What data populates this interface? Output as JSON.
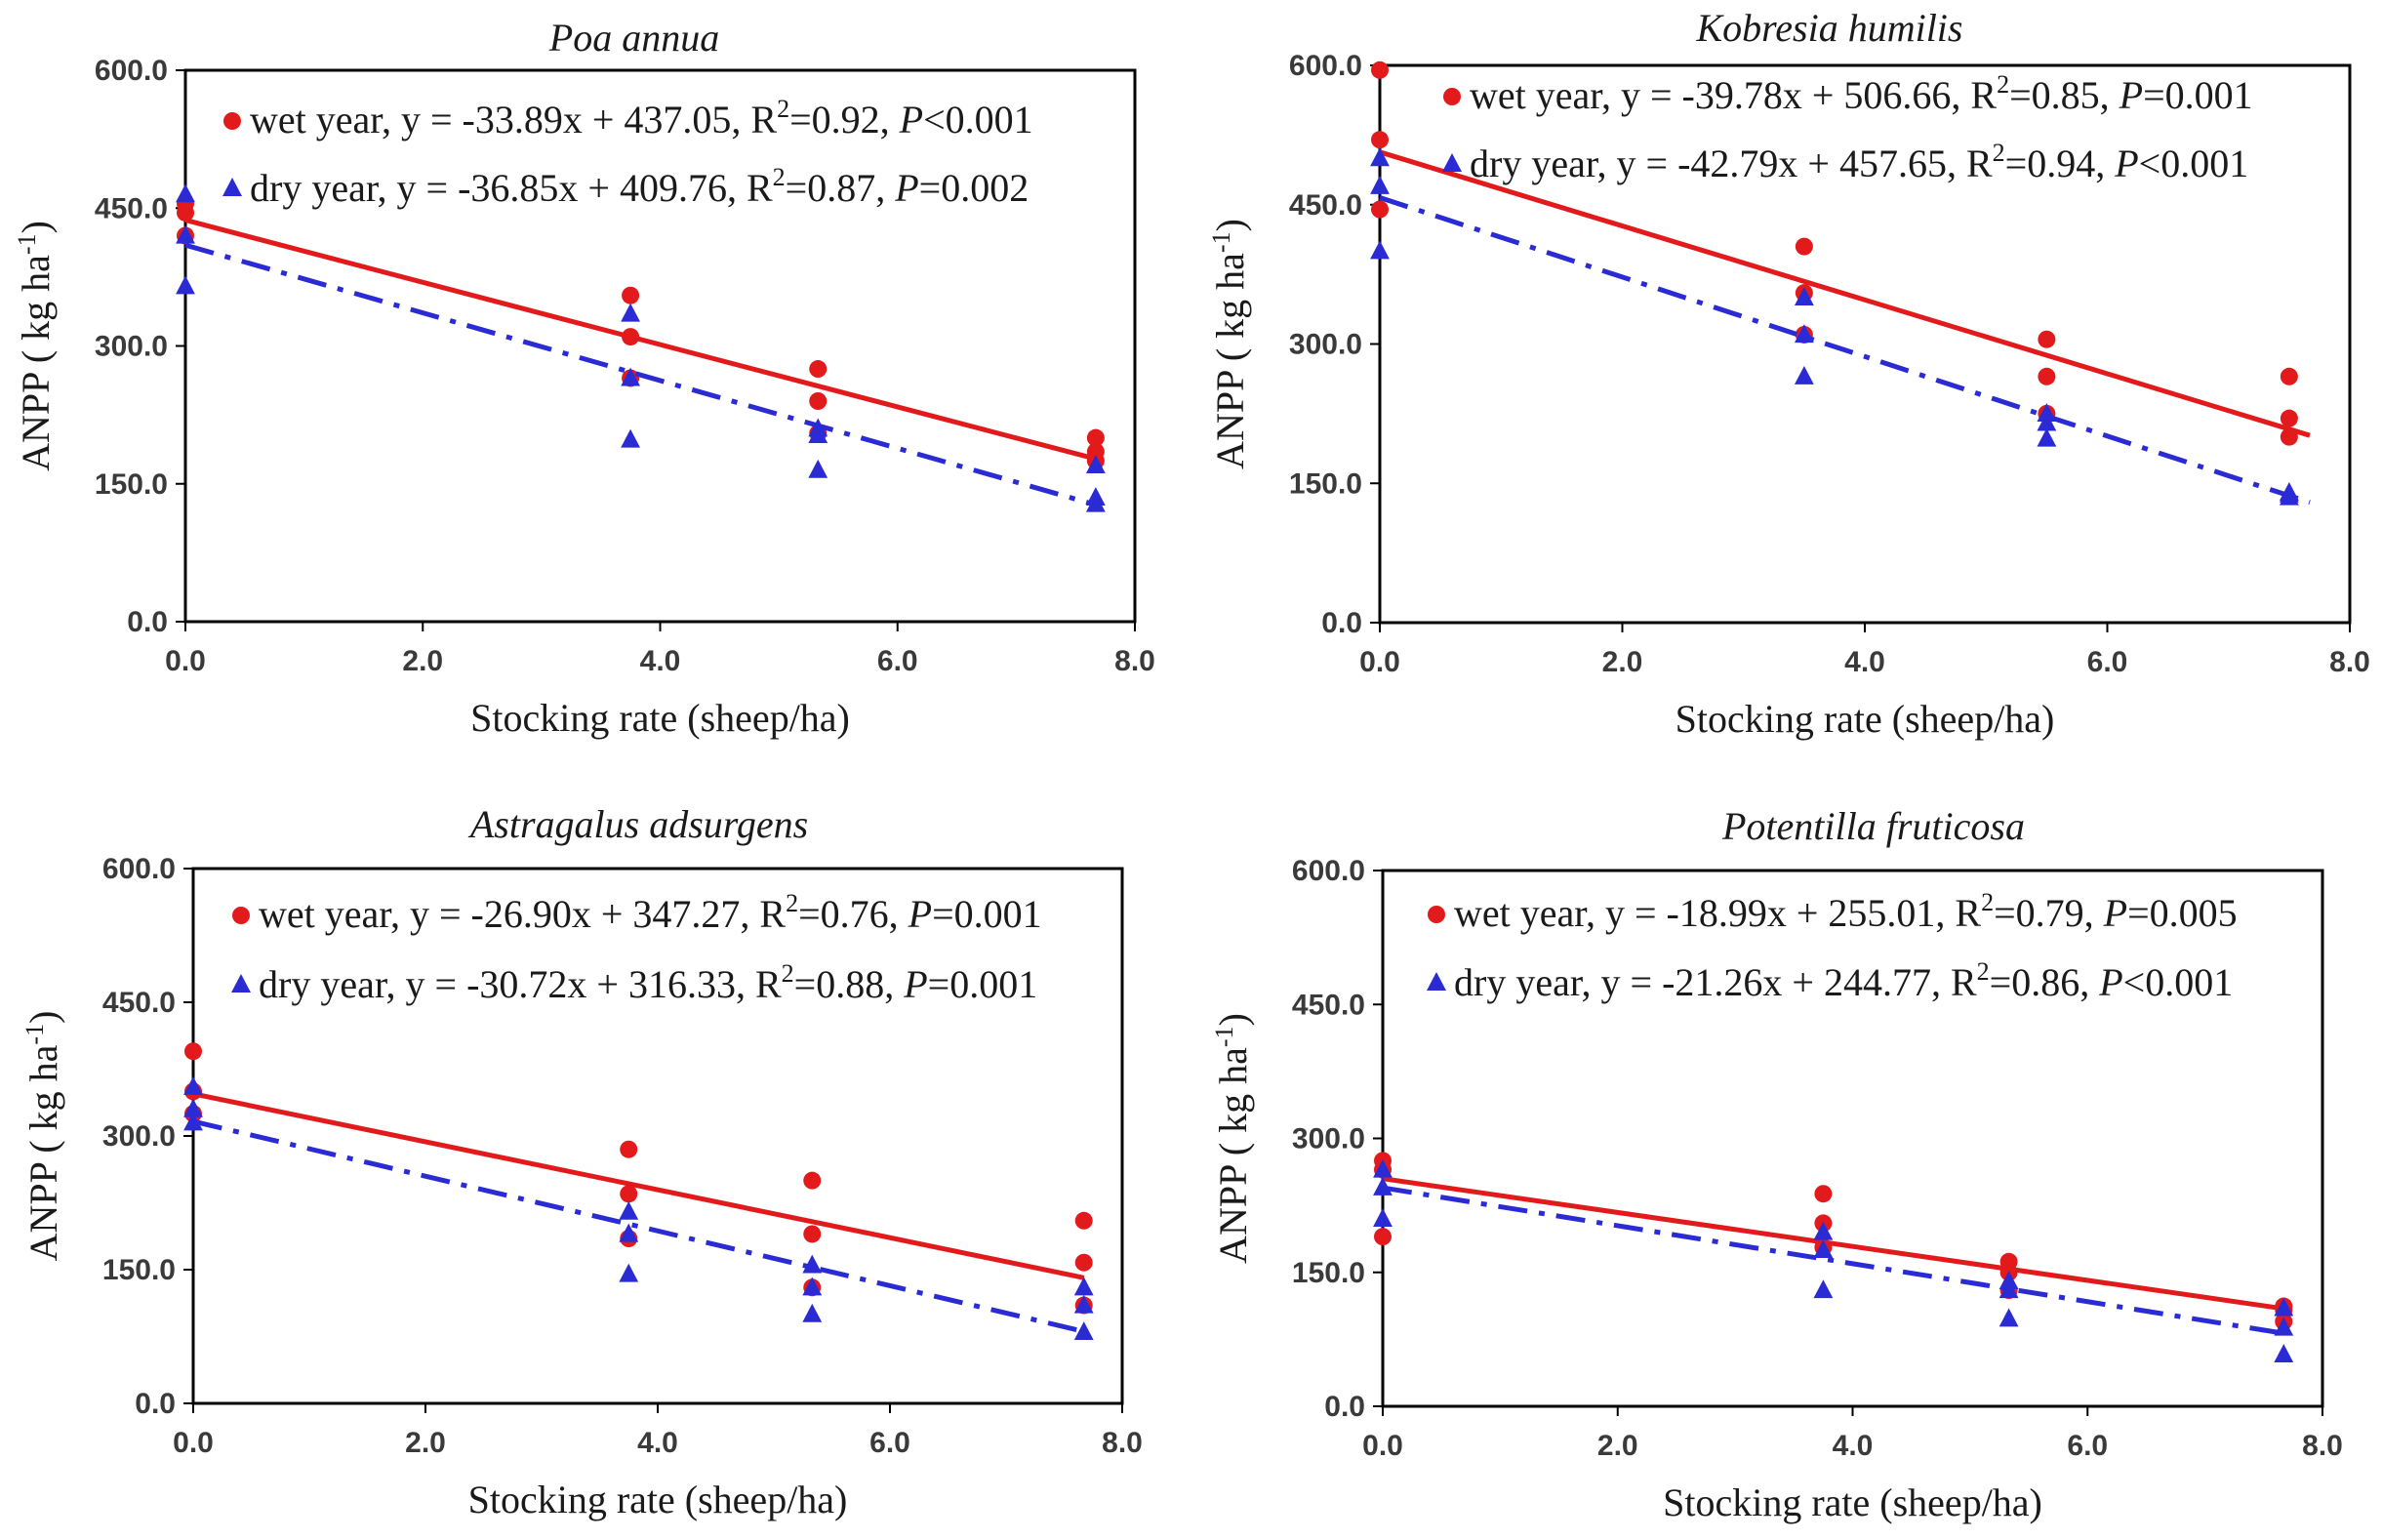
{
  "figure": {
    "colors": {
      "wet": "#e31a1c",
      "dry": "#2b2bd6",
      "axis": "#000000",
      "text": "#1a1a1a"
    }
  },
  "chart_data": [
    {
      "type": "scatter",
      "title": "Poa annua",
      "xlabel": "Stocking rate (sheep/ha)",
      "ylabel_main": "ANPP",
      "ylabel_unit": "( kg ha",
      "ylabel_sup": "-1",
      "ylabel_close": ")",
      "xlim": [
        0,
        8
      ],
      "ylim": [
        0,
        600
      ],
      "x_ticks": [
        "0.0",
        "2.0",
        "4.0",
        "6.0",
        "8.0"
      ],
      "y_ticks": [
        "0.0",
        "150.0",
        "300.0",
        "450.0",
        "600.0"
      ],
      "series": [
        {
          "name": "wet year",
          "color": "#e31a1c",
          "marker": "circle",
          "x": [
            0,
            0,
            0,
            3.75,
            3.75,
            3.75,
            5.33,
            5.33,
            5.33,
            7.67,
            7.67,
            7.67
          ],
          "y": [
            455,
            445,
            420,
            355,
            310,
            265,
            275,
            240,
            205,
            200,
            185,
            175
          ],
          "fit": {
            "slope": -33.89,
            "intercept": 437.05,
            "style": "solid"
          },
          "legend_text": "wet year, y = -33.89x + 437.05, R",
          "r2_sup": "2",
          "r2_value": "=0.92, ",
          "p_label": "P",
          "p_value": "<0.001"
        },
        {
          "name": "dry year",
          "color": "#2b2bd6",
          "marker": "triangle",
          "x": [
            0,
            0,
            0,
            3.75,
            3.75,
            3.75,
            5.33,
            5.33,
            5.33,
            7.67,
            7.67,
            7.67
          ],
          "y": [
            465,
            420,
            365,
            335,
            265,
            198,
            210,
            203,
            165,
            170,
            135,
            128
          ],
          "fit": {
            "slope": -36.85,
            "intercept": 409.76,
            "style": "dashdot"
          },
          "legend_text": "dry year, y = -36.85x + 409.76, R",
          "r2_sup": "2",
          "r2_value": "=0.87, ",
          "p_label": "P",
          "p_value": "=0.002"
        }
      ]
    },
    {
      "type": "scatter",
      "title": "Kobresia humilis",
      "xlabel": "Stocking rate (sheep/ha)",
      "ylabel_main": "ANPP",
      "ylabel_unit": "( kg ha",
      "ylabel_sup": "-1",
      "ylabel_close": ")",
      "xlim": [
        0,
        8
      ],
      "ylim": [
        0,
        600
      ],
      "x_ticks": [
        "0.0",
        "2.0",
        "4.0",
        "6.0",
        "8.0"
      ],
      "y_ticks": [
        "0.0",
        "150.0",
        "300.0",
        "450.0",
        "600.0"
      ],
      "series": [
        {
          "name": "wet year",
          "color": "#e31a1c",
          "marker": "circle",
          "x": [
            0,
            0,
            0,
            3.5,
            3.5,
            3.5,
            5.5,
            5.5,
            5.5,
            7.5,
            7.5,
            7.5
          ],
          "y": [
            595,
            520,
            445,
            405,
            355,
            310,
            305,
            265,
            225,
            265,
            220,
            200
          ],
          "fit": {
            "slope": -39.78,
            "intercept": 506.66,
            "style": "solid"
          },
          "legend_text": "wet year, y = -39.78x + 506.66, R",
          "r2_sup": "2",
          "r2_value": "=0.85, ",
          "p_label": "P",
          "p_value": "=0.001"
        },
        {
          "name": "dry year",
          "color": "#2b2bd6",
          "marker": "triangle",
          "x": [
            0,
            0,
            0,
            3.5,
            3.5,
            3.5,
            5.5,
            5.5,
            5.5,
            7.5,
            7.5,
            7.5
          ],
          "y": [
            500,
            470,
            400,
            350,
            310,
            265,
            225,
            215,
            198,
            140,
            138,
            135
          ],
          "fit": {
            "slope": -42.79,
            "intercept": 457.65,
            "style": "dashdot"
          },
          "legend_text": "dry year, y = -42.79x + 457.65, R",
          "r2_sup": "2",
          "r2_value": "=0.94, ",
          "p_label": "P",
          "p_value": "<0.001"
        }
      ]
    },
    {
      "type": "scatter",
      "title": "Astragalus adsurgens",
      "xlabel": "Stocking rate (sheep/ha)",
      "ylabel_main": "ANPP",
      "ylabel_unit": "( kg ha",
      "ylabel_sup": "-1",
      "ylabel_close": ")",
      "xlim": [
        0,
        8
      ],
      "ylim": [
        0,
        600
      ],
      "x_ticks": [
        "0.0",
        "2.0",
        "4.0",
        "6.0",
        "8.0"
      ],
      "y_ticks": [
        "0.0",
        "150.0",
        "300.0",
        "450.0",
        "600.0"
      ],
      "series": [
        {
          "name": "wet year",
          "color": "#e31a1c",
          "marker": "circle",
          "x": [
            0,
            0,
            0,
            3.75,
            3.75,
            3.75,
            5.33,
            5.33,
            5.33,
            7.67,
            7.67,
            7.67
          ],
          "y": [
            395,
            350,
            325,
            285,
            235,
            185,
            250,
            190,
            130,
            205,
            158,
            110
          ],
          "fit": {
            "slope": -26.9,
            "intercept": 347.27,
            "style": "solid"
          },
          "legend_text": "wet year, y = -26.90x + 347.27, R",
          "r2_sup": "2",
          "r2_value": "=0.76, ",
          "p_label": "P",
          "p_value": "=0.001"
        },
        {
          "name": "dry year",
          "color": "#2b2bd6",
          "marker": "triangle",
          "x": [
            0,
            0,
            0,
            3.75,
            3.75,
            3.75,
            5.33,
            5.33,
            5.33,
            7.67,
            7.67,
            7.67
          ],
          "y": [
            355,
            330,
            315,
            215,
            190,
            145,
            155,
            130,
            100,
            130,
            110,
            80
          ],
          "fit": {
            "slope": -30.72,
            "intercept": 316.33,
            "style": "dashdot"
          },
          "legend_text": "dry year, y = -30.72x + 316.33, R",
          "r2_sup": "2",
          "r2_value": "=0.88, ",
          "p_label": "P",
          "p_value": "=0.001"
        }
      ]
    },
    {
      "type": "scatter",
      "title": "Potentilla fruticosa",
      "xlabel": "Stocking rate (sheep/ha)",
      "ylabel_main": "ANPP",
      "ylabel_unit": "( kg ha",
      "ylabel_sup": "-1",
      "ylabel_close": ")",
      "xlim": [
        0,
        8
      ],
      "ylim": [
        0,
        600
      ],
      "x_ticks": [
        "0.0",
        "2.0",
        "4.0",
        "6.0",
        "8.0"
      ],
      "y_ticks": [
        "0.0",
        "150.0",
        "300.0",
        "450.0",
        "600.0"
      ],
      "series": [
        {
          "name": "wet year",
          "color": "#e31a1c",
          "marker": "circle",
          "x": [
            0,
            0,
            0,
            3.75,
            3.75,
            3.75,
            5.33,
            5.33,
            5.33,
            7.67,
            7.67,
            7.67
          ],
          "y": [
            275,
            265,
            190,
            238,
            205,
            178,
            162,
            150,
            130,
            112,
            108,
            95
          ],
          "fit": {
            "slope": -18.99,
            "intercept": 255.01,
            "style": "solid"
          },
          "legend_text": "wet year, y = -18.99x + 255.01, R",
          "r2_sup": "2",
          "r2_value": "=0.79, ",
          "p_label": "P",
          "p_value": "=0.005"
        },
        {
          "name": "dry year",
          "color": "#2b2bd6",
          "marker": "triangle",
          "x": [
            0,
            0,
            0,
            3.75,
            3.75,
            3.75,
            5.33,
            5.33,
            5.33,
            7.67,
            7.67,
            7.67
          ],
          "y": [
            265,
            245,
            210,
            195,
            175,
            130,
            140,
            130,
            98,
            110,
            88,
            58
          ],
          "fit": {
            "slope": -21.26,
            "intercept": 244.77,
            "style": "dashdot"
          },
          "legend_text": "dry year, y = -21.26x + 244.77, R",
          "r2_sup": "2",
          "r2_value": "=0.86, ",
          "p_label": "P",
          "p_value": "<0.001"
        }
      ]
    }
  ]
}
